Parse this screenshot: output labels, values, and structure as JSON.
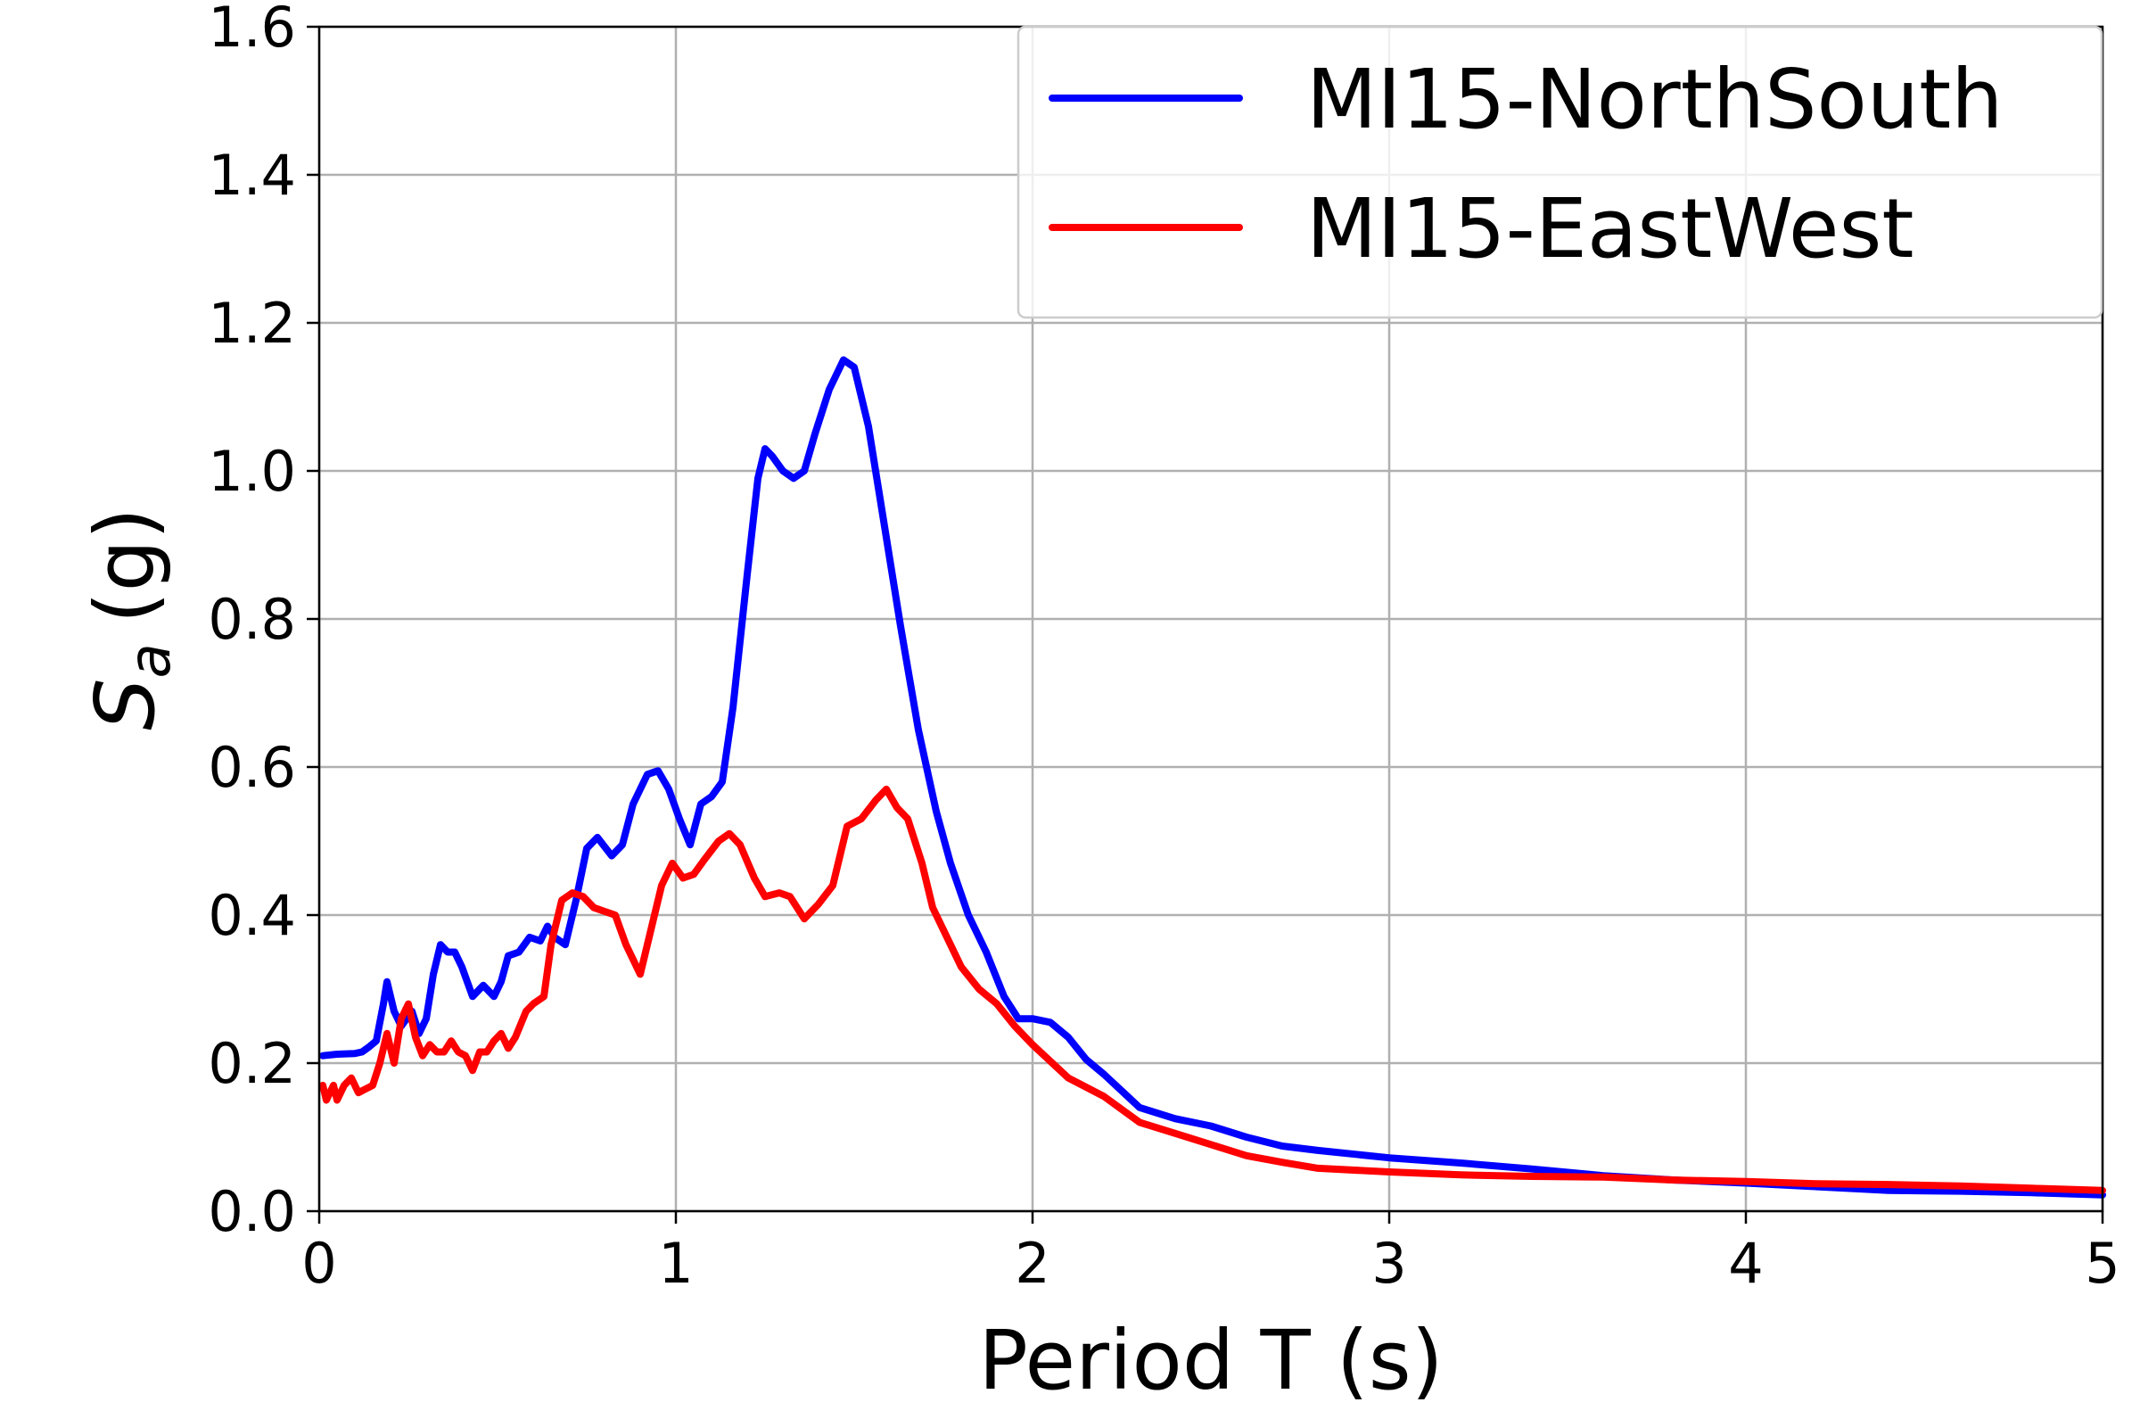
{
  "chart_data": {
    "type": "line",
    "xlabel": "Period T (s)",
    "ylabel": {
      "main": "S",
      "sub": "a",
      "unit": "(g)"
    },
    "xlim": [
      0,
      5
    ],
    "ylim": [
      0,
      1.6
    ],
    "xticks": [
      0,
      1,
      2,
      3,
      4,
      5
    ],
    "xtick_labels": [
      "0",
      "1",
      "2",
      "3",
      "4",
      "5"
    ],
    "yticks": [
      0,
      0.2,
      0.4,
      0.6,
      0.8,
      1.0,
      1.2,
      1.4,
      1.6
    ],
    "ytick_labels": [
      "0.0",
      "0.2",
      "0.4",
      "0.6",
      "0.8",
      "1.0",
      "1.2",
      "1.4",
      "1.6"
    ],
    "grid": true,
    "legend_position": "top-right",
    "series": [
      {
        "name": "MI15-NorthSouth",
        "color": "#0000ff",
        "points": [
          [
            0.01,
            0.21
          ],
          [
            0.05,
            0.212
          ],
          [
            0.1,
            0.213
          ],
          [
            0.12,
            0.215
          ],
          [
            0.14,
            0.222
          ],
          [
            0.16,
            0.23
          ],
          [
            0.18,
            0.28
          ],
          [
            0.19,
            0.31
          ],
          [
            0.21,
            0.27
          ],
          [
            0.23,
            0.25
          ],
          [
            0.26,
            0.27
          ],
          [
            0.28,
            0.24
          ],
          [
            0.3,
            0.26
          ],
          [
            0.32,
            0.32
          ],
          [
            0.34,
            0.36
          ],
          [
            0.36,
            0.35
          ],
          [
            0.38,
            0.35
          ],
          [
            0.4,
            0.33
          ],
          [
            0.43,
            0.29
          ],
          [
            0.46,
            0.305
          ],
          [
            0.49,
            0.29
          ],
          [
            0.51,
            0.31
          ],
          [
            0.53,
            0.345
          ],
          [
            0.56,
            0.35
          ],
          [
            0.59,
            0.37
          ],
          [
            0.62,
            0.365
          ],
          [
            0.64,
            0.385
          ],
          [
            0.66,
            0.37
          ],
          [
            0.69,
            0.36
          ],
          [
            0.72,
            0.42
          ],
          [
            0.75,
            0.49
          ],
          [
            0.78,
            0.505
          ],
          [
            0.82,
            0.48
          ],
          [
            0.85,
            0.495
          ],
          [
            0.88,
            0.55
          ],
          [
            0.92,
            0.59
          ],
          [
            0.95,
            0.595
          ],
          [
            0.98,
            0.57
          ],
          [
            1.01,
            0.53
          ],
          [
            1.04,
            0.495
          ],
          [
            1.07,
            0.55
          ],
          [
            1.1,
            0.56
          ],
          [
            1.13,
            0.58
          ],
          [
            1.16,
            0.68
          ],
          [
            1.2,
            0.86
          ],
          [
            1.23,
            0.99
          ],
          [
            1.25,
            1.03
          ],
          [
            1.27,
            1.02
          ],
          [
            1.3,
            1.0
          ],
          [
            1.33,
            0.99
          ],
          [
            1.36,
            1.0
          ],
          [
            1.39,
            1.05
          ],
          [
            1.43,
            1.11
          ],
          [
            1.47,
            1.15
          ],
          [
            1.5,
            1.14
          ],
          [
            1.54,
            1.06
          ],
          [
            1.58,
            0.94
          ],
          [
            1.63,
            0.79
          ],
          [
            1.68,
            0.65
          ],
          [
            1.73,
            0.54
          ],
          [
            1.77,
            0.47
          ],
          [
            1.82,
            0.4
          ],
          [
            1.87,
            0.35
          ],
          [
            1.92,
            0.29
          ],
          [
            1.96,
            0.26
          ],
          [
            2.0,
            0.26
          ],
          [
            2.05,
            0.255
          ],
          [
            2.1,
            0.235
          ],
          [
            2.15,
            0.205
          ],
          [
            2.2,
            0.185
          ],
          [
            2.3,
            0.14
          ],
          [
            2.4,
            0.125
          ],
          [
            2.5,
            0.115
          ],
          [
            2.6,
            0.1
          ],
          [
            2.7,
            0.088
          ],
          [
            2.8,
            0.082
          ],
          [
            3.0,
            0.072
          ],
          [
            3.2,
            0.065
          ],
          [
            3.4,
            0.057
          ],
          [
            3.6,
            0.048
          ],
          [
            3.8,
            0.042
          ],
          [
            4.0,
            0.038
          ],
          [
            4.2,
            0.033
          ],
          [
            4.4,
            0.028
          ],
          [
            4.6,
            0.027
          ],
          [
            4.8,
            0.025
          ],
          [
            5.0,
            0.022
          ]
        ]
      },
      {
        "name": "MI15-EastWest",
        "color": "#ff0000",
        "points": [
          [
            0.01,
            0.17
          ],
          [
            0.02,
            0.15
          ],
          [
            0.04,
            0.17
          ],
          [
            0.05,
            0.15
          ],
          [
            0.07,
            0.17
          ],
          [
            0.09,
            0.18
          ],
          [
            0.11,
            0.16
          ],
          [
            0.13,
            0.165
          ],
          [
            0.15,
            0.17
          ],
          [
            0.17,
            0.2
          ],
          [
            0.19,
            0.24
          ],
          [
            0.21,
            0.2
          ],
          [
            0.23,
            0.26
          ],
          [
            0.25,
            0.28
          ],
          [
            0.27,
            0.235
          ],
          [
            0.29,
            0.21
          ],
          [
            0.31,
            0.225
          ],
          [
            0.33,
            0.215
          ],
          [
            0.35,
            0.215
          ],
          [
            0.37,
            0.23
          ],
          [
            0.39,
            0.215
          ],
          [
            0.41,
            0.21
          ],
          [
            0.43,
            0.19
          ],
          [
            0.45,
            0.215
          ],
          [
            0.47,
            0.215
          ],
          [
            0.49,
            0.23
          ],
          [
            0.51,
            0.24
          ],
          [
            0.53,
            0.22
          ],
          [
            0.55,
            0.235
          ],
          [
            0.58,
            0.27
          ],
          [
            0.6,
            0.28
          ],
          [
            0.63,
            0.29
          ],
          [
            0.65,
            0.36
          ],
          [
            0.68,
            0.42
          ],
          [
            0.71,
            0.43
          ],
          [
            0.74,
            0.425
          ],
          [
            0.77,
            0.41
          ],
          [
            0.8,
            0.405
          ],
          [
            0.83,
            0.4
          ],
          [
            0.86,
            0.36
          ],
          [
            0.9,
            0.32
          ],
          [
            0.93,
            0.38
          ],
          [
            0.96,
            0.44
          ],
          [
            0.99,
            0.47
          ],
          [
            1.02,
            0.45
          ],
          [
            1.05,
            0.455
          ],
          [
            1.08,
            0.475
          ],
          [
            1.12,
            0.5
          ],
          [
            1.15,
            0.51
          ],
          [
            1.18,
            0.495
          ],
          [
            1.22,
            0.45
          ],
          [
            1.25,
            0.425
          ],
          [
            1.29,
            0.43
          ],
          [
            1.32,
            0.425
          ],
          [
            1.36,
            0.395
          ],
          [
            1.4,
            0.415
          ],
          [
            1.44,
            0.44
          ],
          [
            1.48,
            0.52
          ],
          [
            1.52,
            0.53
          ],
          [
            1.56,
            0.555
          ],
          [
            1.59,
            0.57
          ],
          [
            1.62,
            0.545
          ],
          [
            1.65,
            0.53
          ],
          [
            1.69,
            0.47
          ],
          [
            1.72,
            0.41
          ],
          [
            1.76,
            0.37
          ],
          [
            1.8,
            0.33
          ],
          [
            1.85,
            0.3
          ],
          [
            1.9,
            0.28
          ],
          [
            1.95,
            0.25
          ],
          [
            2.0,
            0.225
          ],
          [
            2.1,
            0.18
          ],
          [
            2.2,
            0.155
          ],
          [
            2.3,
            0.12
          ],
          [
            2.4,
            0.105
          ],
          [
            2.5,
            0.09
          ],
          [
            2.6,
            0.075
          ],
          [
            2.7,
            0.066
          ],
          [
            2.8,
            0.058
          ],
          [
            3.0,
            0.053
          ],
          [
            3.2,
            0.049
          ],
          [
            3.4,
            0.047
          ],
          [
            3.6,
            0.046
          ],
          [
            3.8,
            0.042
          ],
          [
            4.0,
            0.04
          ],
          [
            4.2,
            0.037
          ],
          [
            4.4,
            0.036
          ],
          [
            4.6,
            0.034
          ],
          [
            4.8,
            0.031
          ],
          [
            5.0,
            0.028
          ]
        ]
      }
    ]
  }
}
